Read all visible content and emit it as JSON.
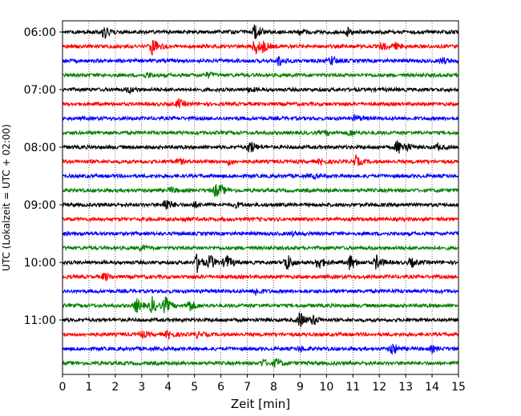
{
  "chart_data": {
    "type": "line",
    "title": "",
    "xlabel": "Zeit  [min]",
    "ylabel": "UTC (Lokalzeit = UTC + 02:00)",
    "xlim": [
      0,
      15
    ],
    "x_ticks": [
      0,
      1,
      2,
      3,
      4,
      5,
      6,
      7,
      8,
      9,
      10,
      11,
      12,
      13,
      14,
      15
    ],
    "y_ticks": [
      "06:00",
      "07:00",
      "08:00",
      "09:00",
      "10:00",
      "11:00"
    ],
    "trace_interval_min": 15,
    "first_trace": "06:00",
    "grid": "vertical dotted",
    "trace_colors": [
      "#000000",
      "#ff0000",
      "#0000ff",
      "#008000"
    ],
    "traces": [
      {
        "start": "06:00",
        "color": "#000000",
        "events": [
          [
            1.6,
            0.8
          ],
          [
            7.3,
            1.0
          ],
          [
            9.0,
            0.3
          ],
          [
            10.8,
            0.4
          ]
        ]
      },
      {
        "start": "06:15",
        "color": "#ff0000",
        "events": [
          [
            3.4,
            1.0
          ],
          [
            7.3,
            0.9
          ],
          [
            7.6,
            0.5
          ],
          [
            12.1,
            0.4
          ],
          [
            12.6,
            0.3
          ]
        ]
      },
      {
        "start": "06:30",
        "color": "#0000ff",
        "events": [
          [
            8.2,
            0.6
          ],
          [
            10.2,
            0.5
          ],
          [
            14.4,
            0.35
          ]
        ]
      },
      {
        "start": "06:45",
        "color": "#008000",
        "events": [
          [
            3.2,
            0.25
          ],
          [
            5.5,
            0.3
          ]
        ]
      },
      {
        "start": "07:00",
        "color": "#000000",
        "events": [
          [
            2.5,
            0.3
          ],
          [
            7.1,
            0.25
          ]
        ]
      },
      {
        "start": "07:15",
        "color": "#ff0000",
        "events": [
          [
            4.4,
            0.45
          ]
        ]
      },
      {
        "start": "07:30",
        "color": "#0000ff",
        "events": [
          [
            11.1,
            0.35
          ]
        ]
      },
      {
        "start": "07:45",
        "color": "#008000",
        "events": [
          [
            10.9,
            0.35
          ],
          [
            10.0,
            0.2
          ]
        ]
      },
      {
        "start": "08:00",
        "color": "#000000",
        "events": [
          [
            7.1,
            0.8
          ],
          [
            12.7,
            0.8
          ],
          [
            13.0,
            0.35
          ],
          [
            14.2,
            0.3
          ]
        ]
      },
      {
        "start": "08:15",
        "color": "#ff0000",
        "events": [
          [
            4.4,
            0.3
          ],
          [
            6.3,
            0.3
          ],
          [
            11.1,
            0.6
          ],
          [
            9.8,
            0.25
          ]
        ]
      },
      {
        "start": "08:30",
        "color": "#0000ff",
        "events": [
          [
            9.5,
            0.2
          ]
        ]
      },
      {
        "start": "08:45",
        "color": "#008000",
        "events": [
          [
            5.8,
            0.7
          ],
          [
            4.1,
            0.3
          ],
          [
            6.0,
            0.3
          ]
        ]
      },
      {
        "start": "09:00",
        "color": "#000000",
        "events": [
          [
            3.9,
            0.8
          ],
          [
            5.0,
            0.3
          ],
          [
            6.6,
            0.25
          ]
        ]
      },
      {
        "start": "09:15",
        "color": "#ff0000",
        "events": [
          [
            4.6,
            0.2
          ]
        ]
      },
      {
        "start": "09:30",
        "color": "#0000ff",
        "events": [
          [
            8.7,
            0.15
          ]
        ]
      },
      {
        "start": "09:45",
        "color": "#008000",
        "events": [
          [
            3.0,
            0.25
          ]
        ]
      },
      {
        "start": "10:00",
        "color": "#000000",
        "events": [
          [
            5.1,
            1.0
          ],
          [
            5.6,
            0.8
          ],
          [
            6.2,
            0.9
          ],
          [
            8.5,
            1.0
          ],
          [
            9.7,
            0.8
          ],
          [
            10.9,
            0.9
          ],
          [
            11.9,
            0.8
          ],
          [
            13.2,
            0.5
          ]
        ]
      },
      {
        "start": "10:15",
        "color": "#ff0000",
        "events": [
          [
            1.6,
            0.4
          ]
        ]
      },
      {
        "start": "10:30",
        "color": "#0000ff",
        "events": [
          [
            7.3,
            0.45
          ]
        ]
      },
      {
        "start": "10:45",
        "color": "#008000",
        "events": [
          [
            2.8,
            0.8
          ],
          [
            3.4,
            0.9
          ],
          [
            3.9,
            0.9
          ],
          [
            4.8,
            0.7
          ]
        ]
      },
      {
        "start": "11:00",
        "color": "#000000",
        "events": [
          [
            9.0,
            0.9
          ],
          [
            9.5,
            0.5
          ]
        ]
      },
      {
        "start": "11:15",
        "color": "#ff0000",
        "events": [
          [
            3.0,
            0.4
          ],
          [
            4.0,
            0.45
          ],
          [
            5.1,
            0.3
          ]
        ]
      },
      {
        "start": "11:30",
        "color": "#0000ff",
        "events": [
          [
            12.5,
            0.7
          ],
          [
            14.0,
            0.3
          ],
          [
            9.0,
            0.25
          ]
        ]
      },
      {
        "start": "11:45",
        "color": "#008000",
        "events": [
          [
            8.1,
            0.5
          ],
          [
            7.6,
            0.4
          ]
        ]
      }
    ]
  }
}
